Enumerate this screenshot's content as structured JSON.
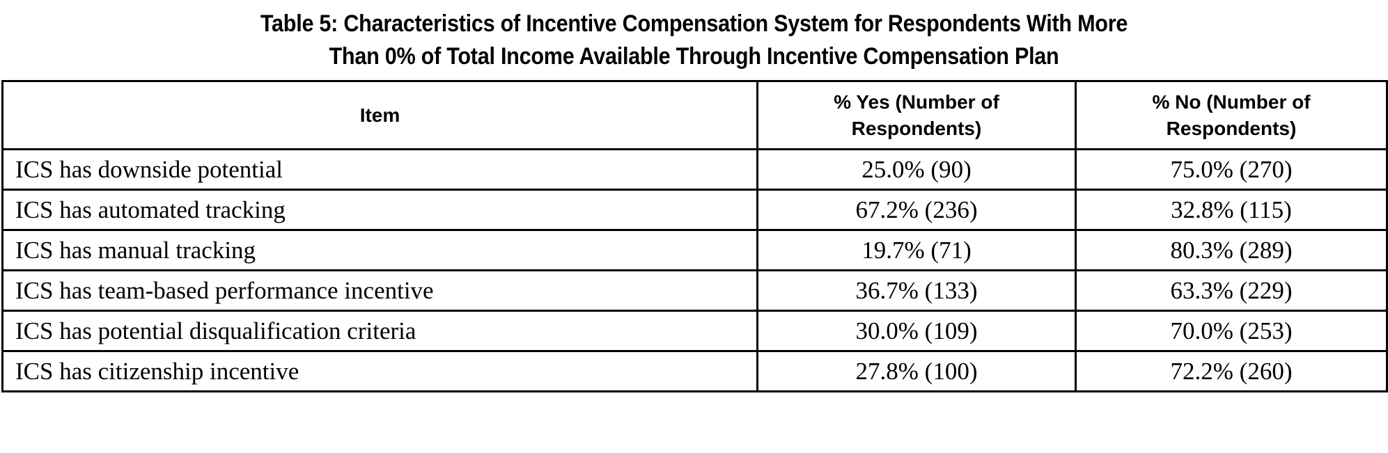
{
  "title": {
    "line1": "Table 5: Characteristics of Incentive Compensation System for Respondents With More",
    "line2": "Than 0% of Total Income Available Through Incentive Compensation Plan"
  },
  "table": {
    "columns": [
      "Item",
      "% Yes (Number of Respondents)",
      "% No (Number of Respondents)"
    ],
    "rows": [
      [
        "ICS has downside potential",
        "25.0% (90)",
        "75.0% (270)"
      ],
      [
        "ICS has automated tracking",
        "67.2% (236)",
        "32.8% (115)"
      ],
      [
        "ICS has manual tracking",
        "19.7% (71)",
        "80.3% (289)"
      ],
      [
        "ICS has team-based performance incentive",
        "36.7% (133)",
        "63.3% (229)"
      ],
      [
        "ICS has potential disqualification criteria",
        "30.0% (109)",
        "70.0% (253)"
      ],
      [
        "ICS has citizenship incentive",
        "27.8% (100)",
        "72.2% (260)"
      ]
    ]
  },
  "colors": {
    "text": "#000000",
    "background": "#ffffff",
    "border": "#000000"
  }
}
